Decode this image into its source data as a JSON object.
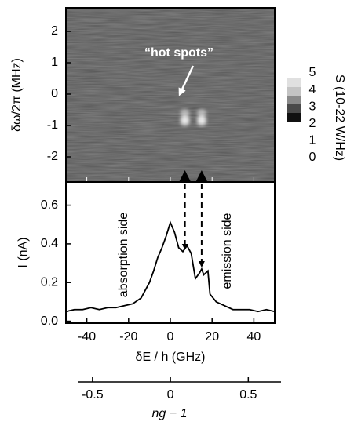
{
  "chart_data": [
    {
      "type": "heatmap",
      "ylabel": "δω/2π (MHz)",
      "xlim": [
        -50,
        50
      ],
      "ylim": [
        -2.8,
        2.75
      ],
      "yticks": [
        2,
        1,
        0,
        -1,
        -2
      ],
      "annotation": "“hot spots”",
      "markers_x": [
        7,
        15
      ],
      "colorbar": {
        "label": "S (10-22 W/Hz)",
        "ticks": [
          5,
          4,
          3,
          2,
          1,
          0
        ],
        "colors": [
          "#e0e0e0",
          "#c4c4c4",
          "#8a8a8a",
          "#4a4a4a",
          "#111111"
        ]
      }
    },
    {
      "type": "line",
      "xlabel": "δE / h (GHz)",
      "ylabel": "I (nA)",
      "xlim": [
        -50,
        50
      ],
      "ylim": [
        -0.01,
        0.72
      ],
      "xticks": [
        -40,
        -20,
        0,
        20,
        40
      ],
      "yticks": [
        {
          "value": 0,
          "label": "0.0"
        },
        0.2,
        0.4,
        0.6
      ],
      "x": [
        -50,
        -46,
        -42,
        -38,
        -34,
        -30,
        -26,
        -22,
        -18,
        -14,
        -10,
        -8,
        -6,
        -4,
        -2,
        0,
        2,
        4,
        6,
        8,
        10,
        12,
        14,
        15,
        16,
        18,
        19,
        22,
        26,
        30,
        34,
        38,
        42,
        46,
        50
      ],
      "series": [
        {
          "color": "#000000",
          "values": [
            0.05,
            0.06,
            0.06,
            0.07,
            0.06,
            0.07,
            0.07,
            0.08,
            0.09,
            0.12,
            0.2,
            0.26,
            0.33,
            0.38,
            0.44,
            0.51,
            0.46,
            0.38,
            0.36,
            0.39,
            0.35,
            0.22,
            0.25,
            0.27,
            0.24,
            0.26,
            0.14,
            0.1,
            0.08,
            0.06,
            0.06,
            0.06,
            0.05,
            0.06,
            0.05
          ]
        }
      ],
      "annotations": [
        "absorption side",
        "emission side"
      ],
      "x2label": "ng − 1",
      "x2lim": [
        -0.59,
        0.71
      ],
      "x2ticks": [
        -0.5,
        0,
        0.5
      ]
    }
  ]
}
